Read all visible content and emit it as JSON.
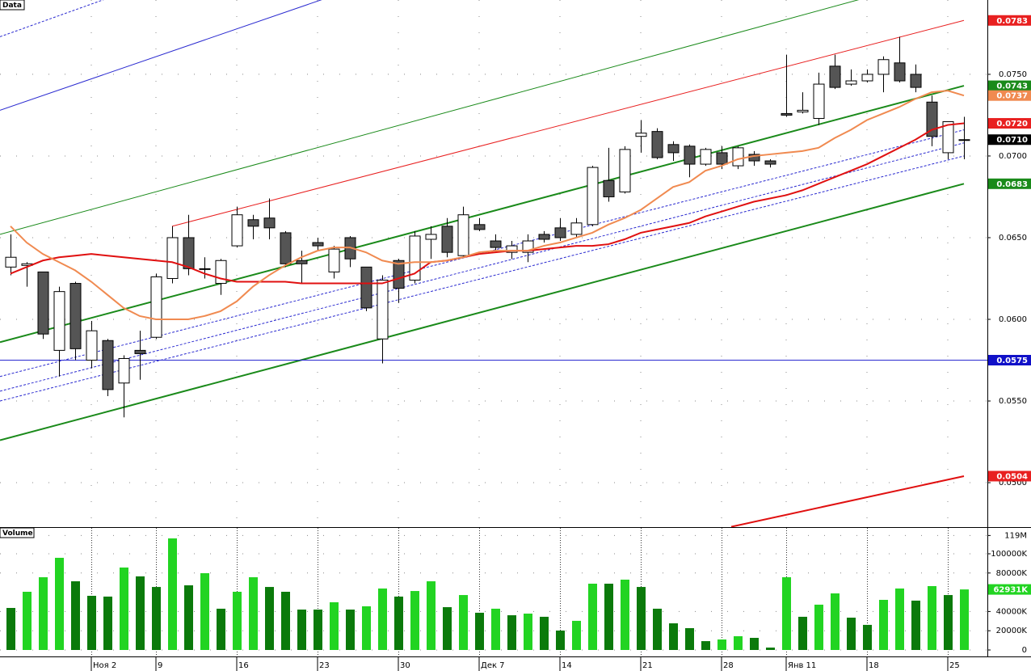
{
  "chart_data": [
    {
      "type": "candlestick",
      "title": "Data",
      "categories": [
        null,
        null,
        null,
        null,
        null,
        "Ноя 2",
        null,
        null,
        null,
        "9",
        null,
        null,
        null,
        null,
        "16",
        null,
        null,
        null,
        null,
        "23",
        null,
        null,
        null,
        null,
        "30",
        null,
        null,
        null,
        null,
        "Дек 7",
        null,
        null,
        null,
        null,
        "14",
        null,
        null,
        null,
        null,
        "21",
        null,
        null,
        null,
        null,
        "28",
        null,
        null,
        null,
        "Янв 11",
        null,
        null,
        null,
        null,
        "18",
        null,
        null,
        null,
        null,
        "25",
        null
      ],
      "open": [
        0.0632,
        0.0633,
        0.0629,
        0.0581,
        0.0622,
        0.0575,
        0.0587,
        0.0561,
        0.0581,
        0.0589,
        0.0625,
        0.065,
        0.0631,
        0.0622,
        0.0645,
        0.0661,
        0.0662,
        0.0653,
        0.0636,
        0.0647,
        0.0629,
        0.065,
        0.0632,
        0.0588,
        0.0636,
        0.0624,
        0.0649,
        0.0657,
        0.0639,
        0.0658,
        0.0648,
        0.0641,
        0.0641,
        0.0652,
        0.0656,
        0.0652,
        0.0658,
        0.0685,
        0.0678,
        0.0712,
        0.0715,
        0.0707,
        0.0706,
        0.0695,
        0.0702,
        0.0694,
        0.0701,
        0.0697,
        0.0726,
        0.0727,
        0.0723,
        0.0755,
        0.0744,
        0.0746,
        0.075,
        0.0757,
        0.075,
        0.0733,
        0.0702,
        0.071
      ],
      "high": [
        0.0652,
        0.0635,
        0.0629,
        0.062,
        0.0623,
        0.0599,
        0.0588,
        0.0578,
        0.0593,
        0.0628,
        0.0657,
        0.0664,
        0.0638,
        0.0637,
        0.0669,
        0.0664,
        0.0674,
        0.0654,
        0.0642,
        0.065,
        0.0645,
        0.0651,
        0.0632,
        0.0627,
        0.0637,
        0.0654,
        0.0657,
        0.0662,
        0.0669,
        0.0662,
        0.0652,
        0.0648,
        0.0652,
        0.0654,
        0.0662,
        0.0662,
        0.0694,
        0.0705,
        0.0706,
        0.0722,
        0.0717,
        0.0709,
        0.0707,
        0.0705,
        0.0706,
        0.0706,
        0.0703,
        0.0698,
        0.0762,
        0.0739,
        0.0751,
        0.0762,
        0.0753,
        0.0753,
        0.0761,
        0.0773,
        0.0756,
        0.0737,
        0.0721,
        0.0724
      ],
      "low": [
        0.0627,
        0.062,
        0.0588,
        0.0565,
        0.0575,
        0.057,
        0.0553,
        0.054,
        0.0563,
        0.0588,
        0.0622,
        0.0627,
        0.0625,
        0.0615,
        0.0644,
        0.0649,
        0.0649,
        0.0632,
        0.0622,
        0.0642,
        0.0625,
        0.0632,
        0.0605,
        0.0573,
        0.061,
        0.0622,
        0.0637,
        0.0638,
        0.0638,
        0.0654,
        0.0642,
        0.0637,
        0.0635,
        0.0647,
        0.0648,
        0.065,
        0.0657,
        0.0672,
        0.0677,
        0.0702,
        0.0698,
        0.0697,
        0.0687,
        0.0694,
        0.0692,
        0.0692,
        0.0694,
        0.0693,
        0.0724,
        0.0726,
        0.0719,
        0.0741,
        0.0743,
        0.0745,
        0.0739,
        0.0745,
        0.0739,
        0.0706,
        0.0698,
        0.0698
      ],
      "close": [
        0.0638,
        0.0634,
        0.0591,
        0.0617,
        0.0582,
        0.0593,
        0.0557,
        0.0576,
        0.0579,
        0.0626,
        0.065,
        0.0631,
        0.0631,
        0.0636,
        0.0664,
        0.0657,
        0.0656,
        0.0634,
        0.0634,
        0.0645,
        0.0643,
        0.0637,
        0.0607,
        0.0624,
        0.0619,
        0.0651,
        0.0652,
        0.0641,
        0.0664,
        0.0655,
        0.0644,
        0.0645,
        0.0648,
        0.0649,
        0.065,
        0.0659,
        0.0693,
        0.0675,
        0.0704,
        0.0714,
        0.0699,
        0.0702,
        0.0695,
        0.0704,
        0.0695,
        0.0705,
        0.0697,
        0.0695,
        0.0725,
        0.0728,
        0.0744,
        0.0742,
        0.0746,
        0.075,
        0.0759,
        0.0746,
        0.0742,
        0.0712,
        0.0721,
        0.071
      ],
      "up_color": "#ffffff",
      "down_color": "#555555",
      "series": [
        {
          "color": "#e01010",
          "width": 2,
          "values": [
            0.0628,
            0.0632,
            0.0636,
            0.0638,
            0.0639,
            0.064,
            0.0639,
            0.0638,
            0.0637,
            0.0636,
            0.0635,
            0.0632,
            0.0628,
            0.0625,
            0.0623,
            0.0623,
            0.0623,
            0.0623,
            0.0622,
            0.0622,
            0.0622,
            0.0622,
            0.0622,
            0.0622,
            0.0625,
            0.0628,
            0.0635,
            0.0636,
            0.0638,
            0.064,
            0.0641,
            0.0642,
            0.0642,
            0.0643,
            0.0644,
            0.0645,
            0.0645,
            0.0646,
            0.0649,
            0.0653,
            0.0655,
            0.0657,
            0.0659,
            0.0663,
            0.0666,
            0.0669,
            0.0672,
            0.0674,
            0.0676,
            0.0679,
            0.0683,
            0.0687,
            0.0691,
            0.0695,
            0.07,
            0.0705,
            0.071,
            0.0716,
            0.0719,
            0.072
          ]
        },
        {
          "color": "#f08a50",
          "width": 2,
          "values": [
            0.0657,
            0.0647,
            0.064,
            0.0635,
            0.063,
            0.0623,
            0.0615,
            0.0607,
            0.0602,
            0.06,
            0.06,
            0.06,
            0.0602,
            0.0605,
            0.0611,
            0.062,
            0.0627,
            0.0633,
            0.0638,
            0.0642,
            0.0644,
            0.0644,
            0.0641,
            0.0636,
            0.0634,
            0.0635,
            0.0635,
            0.0636,
            0.0638,
            0.0641,
            0.0642,
            0.0642,
            0.0642,
            0.0645,
            0.0647,
            0.065,
            0.0653,
            0.0658,
            0.0662,
            0.0667,
            0.0674,
            0.0681,
            0.0684,
            0.0691,
            0.0694,
            0.0698,
            0.07,
            0.0701,
            0.0702,
            0.0703,
            0.0705,
            0.0711,
            0.0716,
            0.0722,
            0.0726,
            0.073,
            0.0735,
            0.0739,
            0.074,
            0.0737
          ]
        }
      ],
      "lines": [
        {
          "color": "#2a2ad0",
          "width": 1,
          "dash": true,
          "x": [
            -0.65,
            5.85
          ],
          "y": [
            0.0773,
            0.0796
          ]
        },
        {
          "color": "#2a2ad0",
          "width": 1,
          "dash": false,
          "x": [
            -0.65,
            19.35
          ],
          "y": [
            0.0728,
            0.0796
          ]
        },
        {
          "color": "#1a8a1a",
          "width": 1,
          "dash": false,
          "x": [
            -0.65,
            52.6
          ],
          "y": [
            0.0652,
            0.0796
          ]
        },
        {
          "color": "#e82020",
          "width": 1,
          "dash": false,
          "x": [
            10,
            59
          ],
          "y": [
            0.0657,
            0.0783
          ]
        },
        {
          "color": "#1a8a1a",
          "width": 2,
          "dash": false,
          "x": [
            -0.65,
            59
          ],
          "y": [
            0.0586,
            0.0743
          ]
        },
        {
          "color": "#1a8a1a",
          "width": 2,
          "dash": false,
          "x": [
            -0.65,
            59
          ],
          "y": [
            0.0526,
            0.0683
          ]
        },
        {
          "color": "#2a2ad0",
          "width": 1,
          "dash": true,
          "x": [
            -0.65,
            59
          ],
          "y": [
            0.0565,
            0.0716
          ]
        },
        {
          "color": "#2a2ad0",
          "width": 1,
          "dash": true,
          "x": [
            -0.65,
            59
          ],
          "y": [
            0.0556,
            0.0708
          ]
        },
        {
          "color": "#2a2ad0",
          "width": 1,
          "dash": true,
          "x": [
            -0.65,
            59
          ],
          "y": [
            0.055,
            0.07
          ]
        },
        {
          "color": "#2a2ad0",
          "width": 1,
          "dash": false,
          "x": [
            -0.65,
            60.45
          ],
          "y": [
            0.0575,
            0.0575
          ]
        },
        {
          "color": "#e01010",
          "width": 2,
          "dash": false,
          "x": [
            44.6,
            59
          ],
          "y": [
            0.0473,
            0.0504
          ]
        }
      ],
      "price_labels": [
        {
          "value": 0.0783,
          "color": "#e82020"
        },
        {
          "value": 0.0743,
          "color": "#1a8a1a"
        },
        {
          "value": 0.0737,
          "color": "#f08a50"
        },
        {
          "value": 0.072,
          "label": "0.0720",
          "color": "#e82020"
        },
        {
          "value": 0.071,
          "label": "0.0710",
          "color": "#000000"
        },
        {
          "value": 0.0683,
          "color": "#1a8a1a"
        },
        {
          "value": 0.0575,
          "color": "#1010c8"
        },
        {
          "value": 0.0504,
          "color": "#e82020"
        }
      ],
      "ylim": [
        0.04728,
        0.07955
      ],
      "yticks": [
        {
          "value": 0.075,
          "label": "0.0750"
        },
        {
          "value": 0.07,
          "label": "0.0700"
        },
        {
          "value": 0.065,
          "label": "0.0650"
        },
        {
          "value": 0.06,
          "label": "0.0600"
        },
        {
          "value": 0.055,
          "label": "0.0550"
        },
        {
          "value": 0.05,
          "label": "0.0500"
        }
      ],
      "grid": true
    },
    {
      "type": "bar",
      "title": "Volume",
      "values": [
        43700000,
        60500000,
        75600000,
        95800000,
        71400000,
        56300000,
        55500000,
        85700000,
        76500000,
        65500000,
        116000000,
        67200000,
        79800000,
        42900000,
        60500000,
        75600000,
        65500000,
        60500000,
        42000000,
        42000000,
        49600000,
        42000000,
        45400000,
        63900000,
        55500000,
        61300000,
        71400000,
        44500000,
        57100000,
        38700000,
        42900000,
        36100000,
        37800000,
        34500000,
        20200000,
        30300000,
        68900000,
        68900000,
        73100000,
        65500000,
        42900000,
        27700000,
        22700000,
        9200000,
        10900000,
        14300000,
        12600000,
        2500000,
        75600000,
        34500000,
        47100000,
        58800000,
        33600000,
        26100000,
        52100000,
        63900000,
        51300000,
        66400000,
        57100000,
        62931000
      ],
      "up_color": "#22d422",
      "down_color": "#0b7a0b",
      "price_labels": [
        {
          "value": 62931000,
          "label": "62931K",
          "color": "#22d422"
        }
      ],
      "ylim": [
        0,
        125200000
      ],
      "yticks": [
        0,
        {
          "value": 20000000,
          "label": "20000K"
        },
        {
          "value": 40000000,
          "label": "40000K"
        },
        {
          "value": 80000000,
          "label": "80000K"
        },
        {
          "value": 100000000,
          "label": "100000K"
        },
        {
          "value": 119000000,
          "label": "119M"
        }
      ],
      "grid": true
    }
  ]
}
